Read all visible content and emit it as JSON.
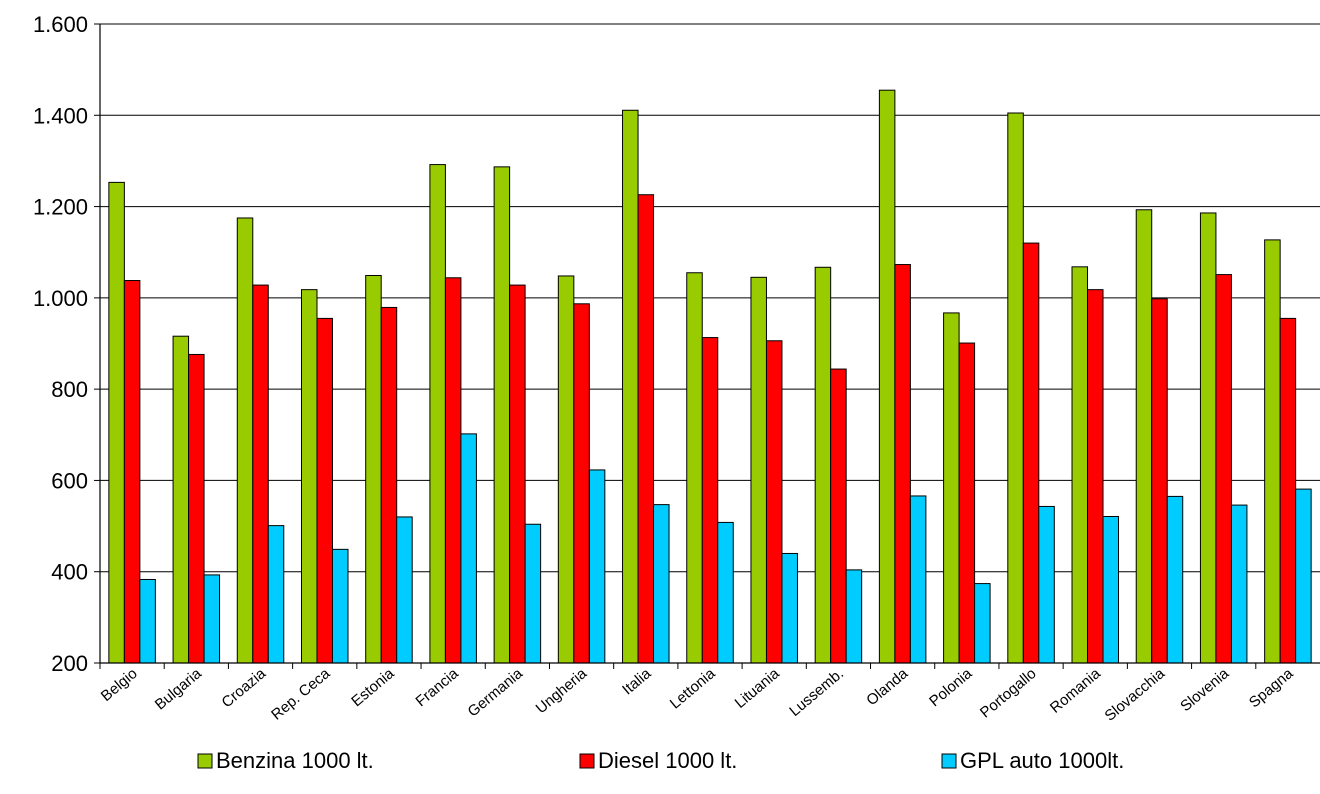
{
  "chart_data": {
    "type": "bar",
    "title": "",
    "xlabel": "",
    "ylabel": "",
    "ylim": [
      200,
      1600
    ],
    "yticks": [
      200,
      400,
      600,
      800,
      1000,
      1200,
      1400,
      1600
    ],
    "ytick_labels": [
      "200",
      "400",
      "600",
      "800",
      "1.000",
      "1.200",
      "1.400",
      "1.600"
    ],
    "grid": true,
    "legend_position": "bottom",
    "categories": [
      "Belgio",
      "Bulgaria",
      "Croazia",
      "Rep. Ceca",
      "Estonia",
      "Francia",
      "Germania",
      "Ungheria",
      "Italia",
      "Lettonia",
      "Lituania",
      "Lussemb.",
      "Olanda",
      "Polonia",
      "Portogallo",
      "Romania",
      "Slovacchia",
      "Slovenia",
      "Spagna"
    ],
    "series": [
      {
        "name": "Benzina 1000 lt.",
        "color": "#99cc00",
        "values": [
          1253,
          916,
          1175,
          1018,
          1049,
          1292,
          1287,
          1048,
          1411,
          1055,
          1045,
          1067,
          1455,
          967,
          1405,
          1068,
          1193,
          1186,
          1127
        ]
      },
      {
        "name": "Diesel 1000 lt.",
        "color": "#ff0000",
        "values": [
          1038,
          876,
          1028,
          955,
          979,
          1044,
          1028,
          987,
          1226,
          913,
          906,
          844,
          1073,
          901,
          1120,
          1018,
          998,
          1051,
          955
        ]
      },
      {
        "name": "GPL auto 1000lt.",
        "color": "#00ccff",
        "values": [
          383,
          393,
          501,
          449,
          520,
          702,
          504,
          623,
          547,
          508,
          440,
          404,
          566,
          374,
          543,
          521,
          565,
          546,
          581
        ]
      }
    ]
  }
}
